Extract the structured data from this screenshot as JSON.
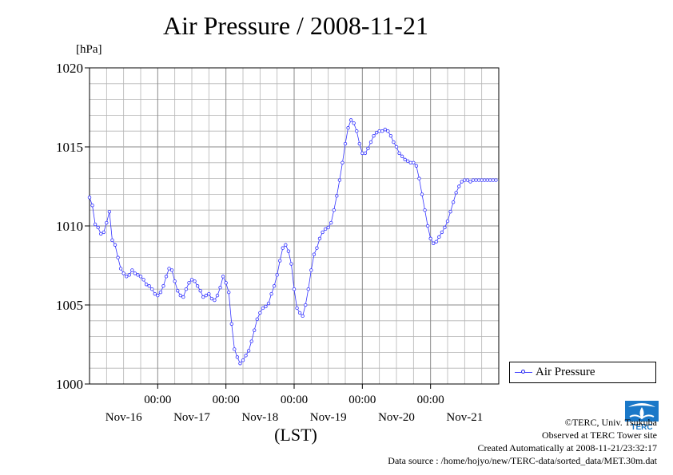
{
  "chart_data": {
    "type": "line",
    "title": "Air Pressure / 2008-11-21",
    "ylabel": "[hPa]",
    "xlabel": "(LST)",
    "ylim": [
      1000,
      1020
    ],
    "yticks": [
      1000,
      1005,
      1010,
      1015,
      1020
    ],
    "xlim": [
      0,
      144
    ],
    "xticks_time": [
      "00:00",
      "00:00",
      "00:00",
      "00:00",
      "00:00"
    ],
    "xticks_time_at": [
      24,
      48,
      72,
      96,
      120
    ],
    "xticks_date": [
      "Nov-16",
      "Nov-17",
      "Nov-18",
      "Nov-19",
      "Nov-20",
      "Nov-21"
    ],
    "xticks_date_at": [
      12,
      36,
      60,
      84,
      108,
      132
    ],
    "grid": true,
    "legend_position": "right",
    "series": [
      {
        "name": "Air Pressure",
        "color": "#3333ff",
        "x": [
          0,
          1,
          2,
          3,
          4,
          5,
          6,
          7,
          8,
          9,
          10,
          11,
          12,
          13,
          14,
          15,
          16,
          17,
          18,
          19,
          20,
          21,
          22,
          23,
          24,
          25,
          26,
          27,
          28,
          29,
          30,
          31,
          32,
          33,
          34,
          35,
          36,
          37,
          38,
          39,
          40,
          41,
          42,
          43,
          44,
          45,
          46,
          47,
          48,
          49,
          50,
          51,
          52,
          53,
          54,
          55,
          56,
          57,
          58,
          59,
          60,
          61,
          62,
          63,
          64,
          65,
          66,
          67,
          68,
          69,
          70,
          71,
          72,
          73,
          74,
          75,
          76,
          77,
          78,
          79,
          80,
          81,
          82,
          83,
          84,
          85,
          86,
          87,
          88,
          89,
          90,
          91,
          92,
          93,
          94,
          95,
          96,
          97,
          98,
          99,
          100,
          101,
          102,
          103,
          104,
          105,
          106,
          107,
          108,
          109,
          110,
          111,
          112,
          113,
          114,
          115,
          116,
          117,
          118,
          119,
          120,
          121,
          122,
          123,
          124,
          125,
          126,
          127,
          128,
          129,
          130,
          131,
          132,
          133,
          134,
          135,
          136,
          137,
          138,
          139,
          140,
          141,
          142,
          143
        ],
        "values": [
          1011.8,
          1011.3,
          1010.1,
          1009.9,
          1009.5,
          1009.6,
          1010.2,
          1010.9,
          1009.1,
          1008.8,
          1008.0,
          1007.3,
          1007.0,
          1006.8,
          1006.9,
          1007.2,
          1007.0,
          1006.9,
          1006.8,
          1006.6,
          1006.3,
          1006.2,
          1006.0,
          1005.7,
          1005.6,
          1005.8,
          1006.2,
          1006.8,
          1007.3,
          1007.2,
          1006.5,
          1005.9,
          1005.6,
          1005.5,
          1006.0,
          1006.4,
          1006.6,
          1006.5,
          1006.2,
          1005.9,
          1005.5,
          1005.6,
          1005.7,
          1005.4,
          1005.3,
          1005.6,
          1006.1,
          1006.8,
          1006.4,
          1005.8,
          1003.8,
          1002.2,
          1001.7,
          1001.3,
          1001.5,
          1001.8,
          1002.1,
          1002.7,
          1003.4,
          1004.1,
          1004.5,
          1004.8,
          1004.9,
          1005.1,
          1005.7,
          1006.2,
          1006.9,
          1007.8,
          1008.6,
          1008.8,
          1008.4,
          1007.6,
          1006.0,
          1004.8,
          1004.5,
          1004.3,
          1005.0,
          1006.0,
          1007.2,
          1008.2,
          1008.6,
          1009.2,
          1009.6,
          1009.8,
          1009.9,
          1010.2,
          1011.0,
          1011.9,
          1012.9,
          1014.0,
          1015.2,
          1016.2,
          1016.7,
          1016.5,
          1016.0,
          1015.2,
          1014.6,
          1014.6,
          1014.9,
          1015.3,
          1015.7,
          1015.9,
          1016.0,
          1016.0,
          1016.1,
          1016.0,
          1015.7,
          1015.3,
          1015.0,
          1014.6,
          1014.4,
          1014.2,
          1014.1,
          1014.0,
          1014.0,
          1013.8,
          1013.0,
          1012.0,
          1011.0,
          1010.0,
          1009.2,
          1008.9,
          1009.0,
          1009.3,
          1009.6,
          1009.9,
          1010.3,
          1010.9,
          1011.5,
          1012.1,
          1012.5,
          1012.8,
          1012.9,
          1012.9,
          1012.8,
          1012.9,
          1012.9,
          1012.9,
          1012.9,
          1012.9,
          1012.9,
          1012.9,
          1012.9,
          1012.9
        ]
      }
    ]
  },
  "credits": {
    "line1": "©TERC, Univ. Tsukuba",
    "line2": "Observed at TERC Tower site",
    "line3": "Created Automatically at 2008-11-21/23:32:17",
    "line4": "Data source : /home/hojyo/new/TERC-data/sorted_data/MET.30m.dat"
  },
  "logo": {
    "name": "terc-logo",
    "text": "TERC",
    "color": "#1a78c8"
  }
}
